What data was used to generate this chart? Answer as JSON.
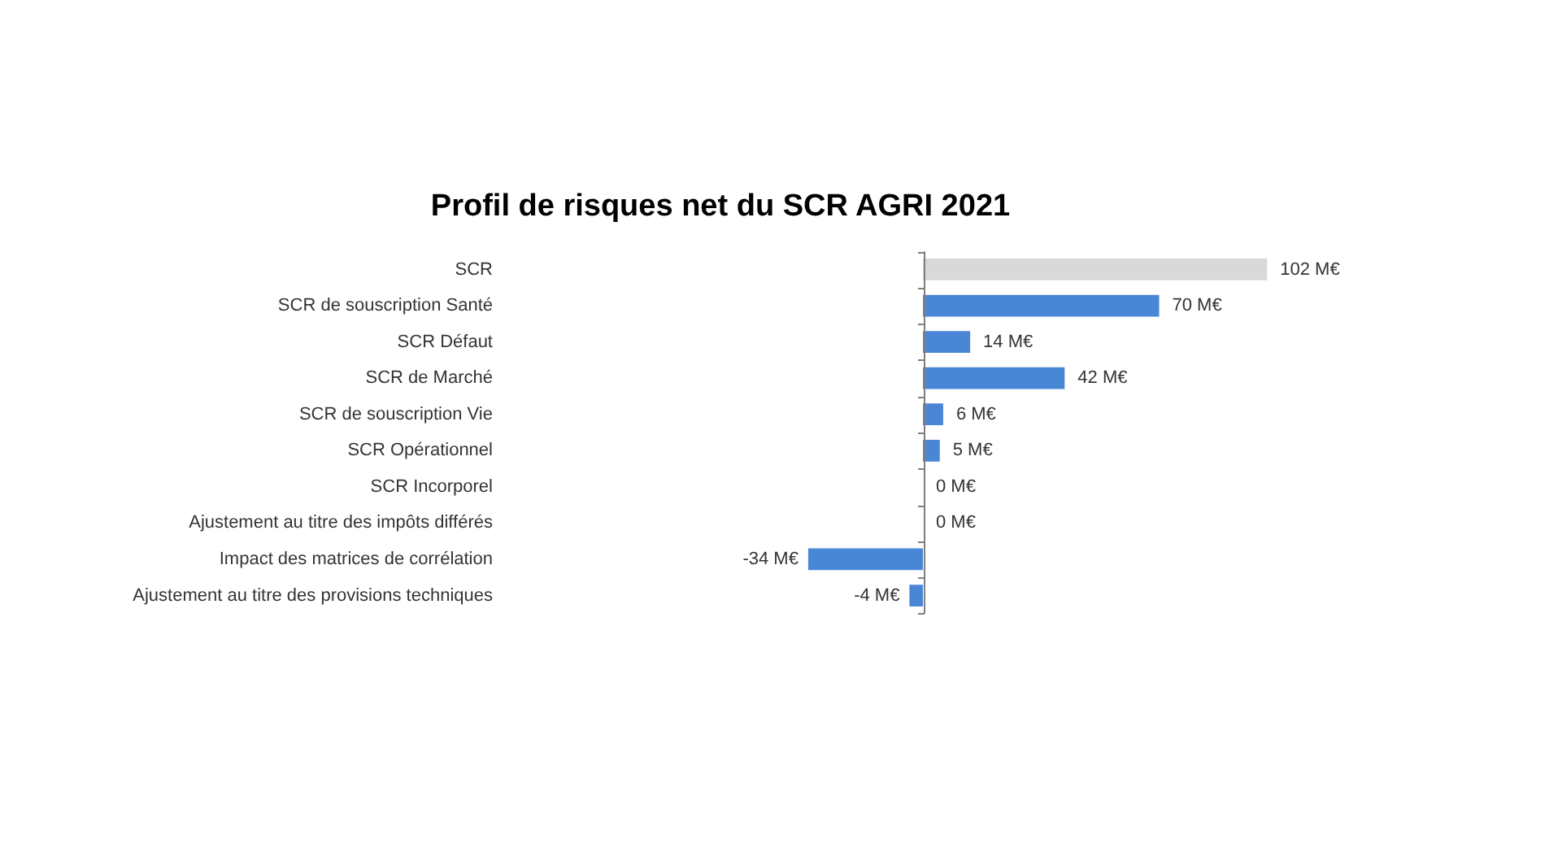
{
  "chart_data": {
    "type": "bar",
    "orientation": "horizontal",
    "title": "Profil de risques net du SCR AGRI 2021",
    "categories": [
      "SCR",
      "SCR de souscription Santé",
      "SCR Défaut",
      "SCR de Marché",
      "SCR de souscription Vie",
      "SCR Opérationnel",
      "SCR Incorporel",
      "Ajustement au titre des impôts différés",
      "Impact des matrices de corrélation",
      "Ajustement au titre des provisions techniques"
    ],
    "values": [
      102,
      70,
      14,
      42,
      6,
      5,
      0,
      0,
      -34,
      -4
    ],
    "colors": [
      "#d9d9d9",
      "#4a86d6",
      "#4a86d6",
      "#4a86d6",
      "#4a86d6",
      "#4a86d6",
      "#4a86d6",
      "#4a86d6",
      "#4a86d6",
      "#4a86d6"
    ],
    "value_labels": [
      "102 M€",
      "70 M€",
      "14 M€",
      "42 M€",
      "6 M€",
      "5 M€",
      "0 M€",
      "0 M€",
      "-34 M€",
      "-4 M€"
    ],
    "legend": false
  }
}
